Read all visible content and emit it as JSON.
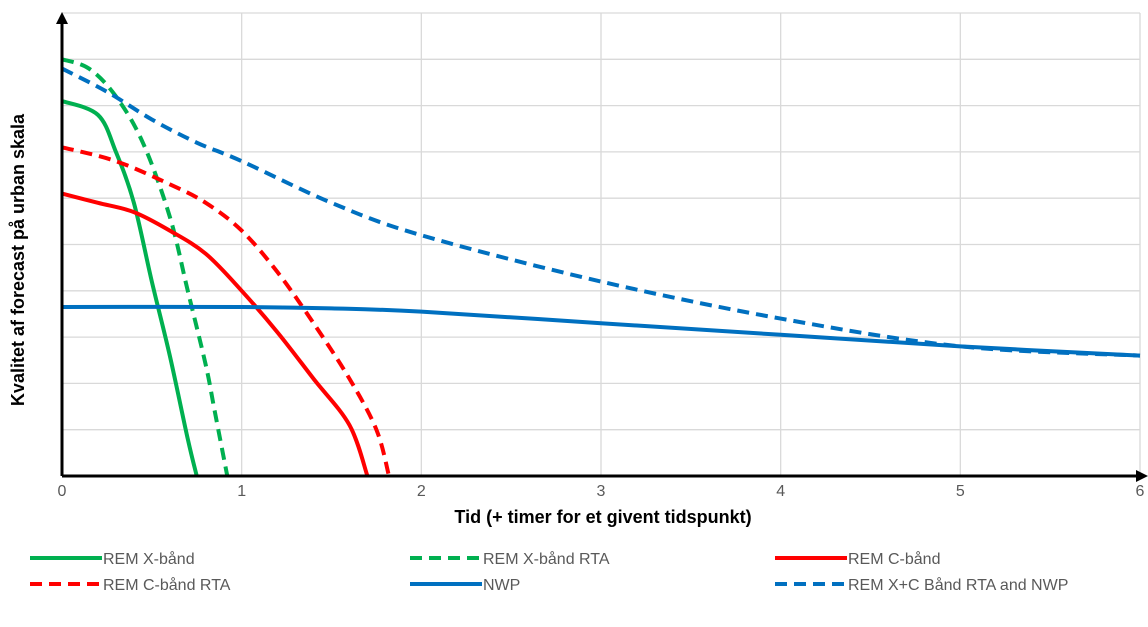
{
  "chart_data": {
    "type": "line",
    "xlabel": "Tid (+ timer for et givent tidspunkt)",
    "ylabel": "Kvalitet af forecast på urban skala",
    "xlim": [
      0,
      6
    ],
    "ylim": [
      0,
      10
    ],
    "x_ticks": [
      "0",
      "1",
      "2",
      "3",
      "4",
      "5",
      "6"
    ],
    "y_grid_count": 10,
    "grid": true,
    "legend_position": "bottom",
    "series": [
      {
        "name": "REM X-bånd",
        "color": "#00B050",
        "dash": "solid",
        "points": [
          [
            0,
            8.1
          ],
          [
            0.2,
            7.8
          ],
          [
            0.3,
            7.0
          ],
          [
            0.4,
            5.9
          ],
          [
            0.5,
            4.2
          ],
          [
            0.6,
            2.6
          ],
          [
            0.7,
            0.8
          ],
          [
            0.75,
            0
          ]
        ]
      },
      {
        "name": "REM X-bånd RTA",
        "color": "#00B050",
        "dash": "dashed",
        "points": [
          [
            0,
            9.0
          ],
          [
            0.15,
            8.8
          ],
          [
            0.3,
            8.2
          ],
          [
            0.45,
            7.2
          ],
          [
            0.6,
            5.6
          ],
          [
            0.7,
            4.0
          ],
          [
            0.8,
            2.4
          ],
          [
            0.85,
            1.4
          ],
          [
            0.92,
            0
          ]
        ]
      },
      {
        "name": "REM C-bånd",
        "color": "#FF0000",
        "dash": "solid",
        "points": [
          [
            0,
            6.1
          ],
          [
            0.2,
            5.9
          ],
          [
            0.4,
            5.7
          ],
          [
            0.6,
            5.3
          ],
          [
            0.8,
            4.8
          ],
          [
            1.0,
            4.0
          ],
          [
            1.2,
            3.1
          ],
          [
            1.4,
            2.1
          ],
          [
            1.6,
            1.1
          ],
          [
            1.7,
            0
          ]
        ]
      },
      {
        "name": "REM C-bånd RTA",
        "color": "#FF0000",
        "dash": "dashed",
        "points": [
          [
            0,
            7.1
          ],
          [
            0.3,
            6.8
          ],
          [
            0.6,
            6.3
          ],
          [
            0.8,
            5.9
          ],
          [
            1.0,
            5.3
          ],
          [
            1.2,
            4.4
          ],
          [
            1.4,
            3.3
          ],
          [
            1.6,
            2.1
          ],
          [
            1.75,
            1.0
          ],
          [
            1.82,
            0
          ]
        ]
      },
      {
        "name": "NWP",
        "color": "#0070C0",
        "dash": "solid",
        "points": [
          [
            0,
            3.65
          ],
          [
            1.0,
            3.65
          ],
          [
            1.5,
            3.62
          ],
          [
            2.0,
            3.55
          ],
          [
            3.0,
            3.3
          ],
          [
            4.0,
            3.05
          ],
          [
            5.0,
            2.8
          ],
          [
            6.0,
            2.6
          ]
        ]
      },
      {
        "name": "REM X+C Bånd RTA and NWP",
        "color": "#0070C0",
        "dash": "dashed",
        "points": [
          [
            0,
            8.8
          ],
          [
            0.25,
            8.3
          ],
          [
            0.5,
            7.7
          ],
          [
            0.75,
            7.2
          ],
          [
            1.0,
            6.8
          ],
          [
            1.5,
            5.9
          ],
          [
            2.0,
            5.2
          ],
          [
            3.0,
            4.2
          ],
          [
            4.0,
            3.4
          ],
          [
            5.0,
            2.8
          ],
          [
            6.0,
            2.6
          ]
        ]
      }
    ]
  }
}
